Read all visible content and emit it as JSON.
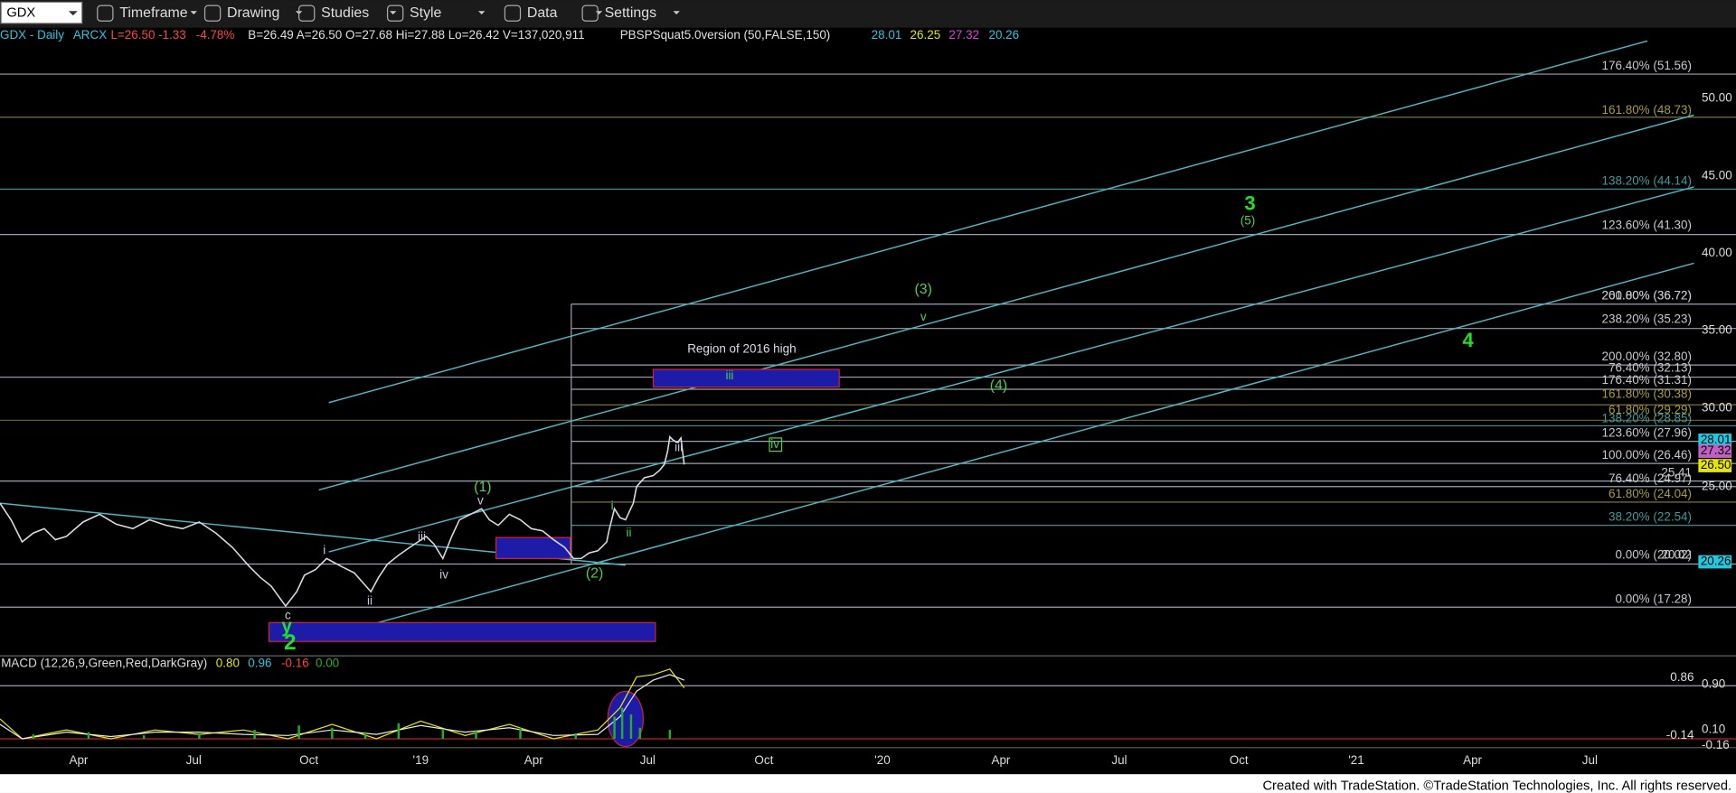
{
  "toolbar": {
    "symbol": "GDX",
    "menus": [
      "Timeframe",
      "Drawing",
      "Studies",
      "Style",
      "Data",
      "Settings"
    ]
  },
  "info": {
    "symbol": "GDX - Daily",
    "exchange": "ARCX",
    "last": "L=26.50",
    "change": "-1.33",
    "change_pct": "-4.78%",
    "quote": "B=26.49 A=26.50 O=27.68 Hi=27.88 Lo=26.42 V=137,020,911",
    "study": "PBSPSquat5.0version (50,FALSE,150)",
    "study_values": [
      "28.01",
      "26.25",
      "27.32",
      "20.26"
    ]
  },
  "price_axis": [
    "50.00",
    "45.00",
    "40.00",
    "35.00",
    "30.00",
    "25.00"
  ],
  "price_tags": [
    "28.01",
    "27.32",
    "26.50",
    "20.26"
  ],
  "fib_labels": [
    "176.40% (51.56)",
    "161.80% (48.73)",
    "138.20% (44.14)",
    "123.60% (41.30)",
    "261.80% (36.72)",
    "200.00% (36.72)",
    "238.20% (35.23)",
    "200.00% (32.80)",
    "76.40% (32.13)",
    "176.40% (31.31)",
    "161.80% (30.38)",
    "61.80% (29.29)",
    "138.20% (28.85)",
    "123.60% (27.96)",
    "100.00% (26.46)",
    "25.41",
    "76.40% (24.97)",
    "61.80% (24.04)",
    "38.20% (22.54)",
    "0.00% (20.02)",
    "20.02",
    "0.00% (17.28)"
  ],
  "wave_labels": [
    "(1)",
    "v",
    "i",
    "iii",
    "iv",
    "ii",
    "c",
    "y",
    "2",
    "(2)",
    "i",
    "ii",
    "iii",
    "iii",
    "(3)",
    "v",
    "(4)",
    "iv",
    "3",
    "(5)",
    "4"
  ],
  "annotation": "Region of 2016 high",
  "macd": {
    "title": "MACD (12,26,9,Green,Red,DarkGray)",
    "values": [
      "0.80",
      "0.96",
      "-0.16",
      "0.00"
    ],
    "axis": [
      "0.86",
      "0.90",
      "0.10",
      "-0.14",
      "-0.16"
    ]
  },
  "time_axis": [
    "Apr",
    "Jul",
    "Oct",
    "'19",
    "Apr",
    "Jul",
    "Oct",
    "'20",
    "Apr",
    "Jul",
    "Oct",
    "'21",
    "Apr",
    "Jul"
  ],
  "footer": "Created with TradeStation. ©TradeStation Technologies, Inc. All rights reserved."
}
